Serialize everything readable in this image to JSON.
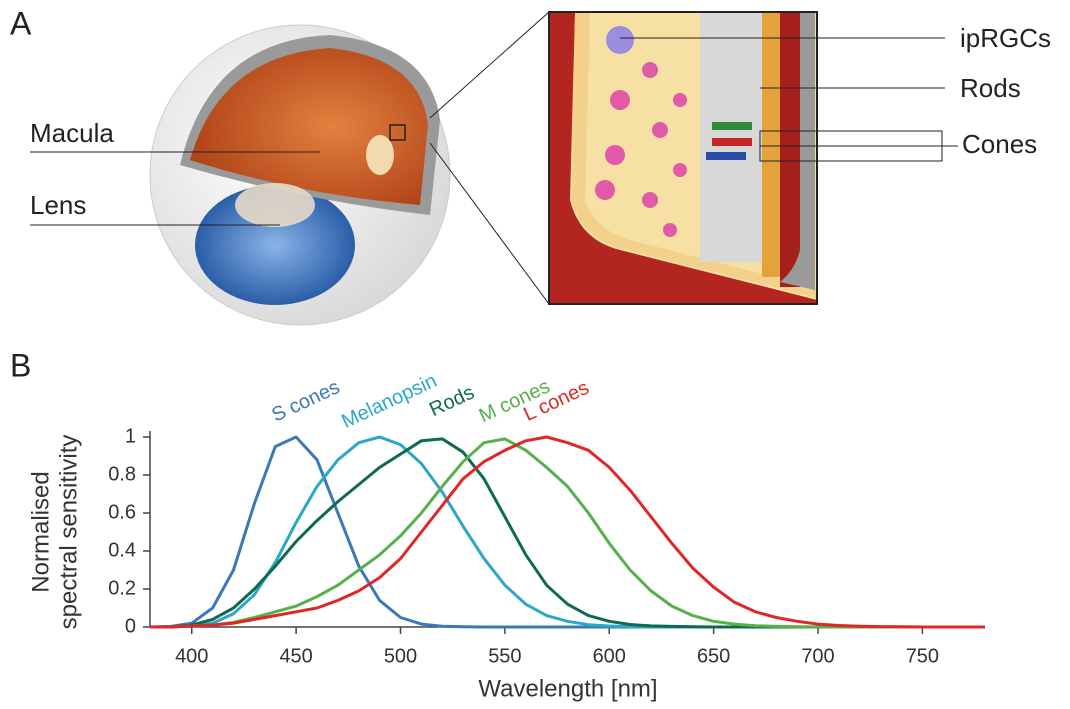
{
  "figure": {
    "panel_a": {
      "label": "A",
      "callouts": [
        "Macula",
        "Lens",
        "ipRGCs",
        "Rods",
        "Cones"
      ]
    },
    "panel_b": {
      "label": "B"
    }
  },
  "chart_data": {
    "type": "line",
    "xlabel": "Wavelength [nm]",
    "ylabel": [
      "Normalised",
      "spectral sensitivity"
    ],
    "x": [
      380,
      390,
      400,
      410,
      420,
      430,
      440,
      450,
      460,
      470,
      480,
      490,
      500,
      510,
      520,
      530,
      540,
      550,
      560,
      570,
      580,
      590,
      600,
      610,
      620,
      630,
      640,
      650,
      660,
      670,
      680,
      690,
      700,
      710,
      720,
      730,
      740,
      750,
      760,
      770,
      780
    ],
    "xlim": [
      380,
      780
    ],
    "xticks": [
      400,
      450,
      500,
      550,
      600,
      650,
      700,
      750
    ],
    "ylim": [
      0,
      1
    ],
    "yticks": [
      0,
      0.2,
      0.4,
      0.6,
      0.8,
      1
    ],
    "series": [
      {
        "name": "S cones",
        "color": "#3b78b8",
        "values": [
          0,
          0.003,
          0.02,
          0.1,
          0.3,
          0.65,
          0.95,
          1.0,
          0.88,
          0.6,
          0.32,
          0.14,
          0.05,
          0.015,
          0.004,
          0.001,
          0,
          0,
          0,
          0,
          0,
          0,
          0,
          0,
          0,
          0,
          0,
          0,
          0,
          0,
          0,
          0,
          0,
          0,
          0,
          0,
          0,
          0,
          0,
          0,
          0
        ]
      },
      {
        "name": "Melanopsin",
        "color": "#2ba7c9",
        "values": [
          0,
          0,
          0.005,
          0.02,
          0.07,
          0.17,
          0.34,
          0.55,
          0.74,
          0.88,
          0.97,
          1.0,
          0.96,
          0.86,
          0.71,
          0.53,
          0.36,
          0.22,
          0.12,
          0.06,
          0.03,
          0.012,
          0.005,
          0.002,
          0.001,
          0,
          0,
          0,
          0,
          0,
          0,
          0,
          0,
          0,
          0,
          0,
          0,
          0,
          0,
          0,
          0
        ]
      },
      {
        "name": "Rods",
        "color": "#0e6a4f",
        "values": [
          0,
          0,
          0.01,
          0.04,
          0.1,
          0.2,
          0.32,
          0.45,
          0.56,
          0.66,
          0.75,
          0.84,
          0.91,
          0.98,
          0.99,
          0.92,
          0.78,
          0.58,
          0.38,
          0.22,
          0.12,
          0.06,
          0.03,
          0.013,
          0.006,
          0.003,
          0.001,
          0,
          0,
          0,
          0,
          0,
          0,
          0,
          0,
          0,
          0,
          0,
          0,
          0,
          0
        ]
      },
      {
        "name": "M cones",
        "color": "#56b04b",
        "values": [
          0,
          0,
          0.005,
          0.01,
          0.025,
          0.05,
          0.08,
          0.11,
          0.16,
          0.22,
          0.3,
          0.38,
          0.48,
          0.6,
          0.74,
          0.87,
          0.97,
          0.99,
          0.93,
          0.84,
          0.74,
          0.6,
          0.44,
          0.3,
          0.19,
          0.11,
          0.06,
          0.03,
          0.015,
          0.007,
          0.003,
          0.001,
          0,
          0,
          0,
          0,
          0,
          0,
          0,
          0,
          0
        ]
      },
      {
        "name": "L cones",
        "color": "#e02727",
        "values": [
          0,
          0,
          0.005,
          0.01,
          0.02,
          0.04,
          0.06,
          0.08,
          0.1,
          0.14,
          0.19,
          0.26,
          0.36,
          0.5,
          0.64,
          0.78,
          0.87,
          0.93,
          0.98,
          1.0,
          0.97,
          0.93,
          0.84,
          0.72,
          0.58,
          0.44,
          0.31,
          0.21,
          0.13,
          0.08,
          0.05,
          0.03,
          0.015,
          0.008,
          0.004,
          0.002,
          0.001,
          0,
          0,
          0,
          0
        ]
      }
    ]
  }
}
